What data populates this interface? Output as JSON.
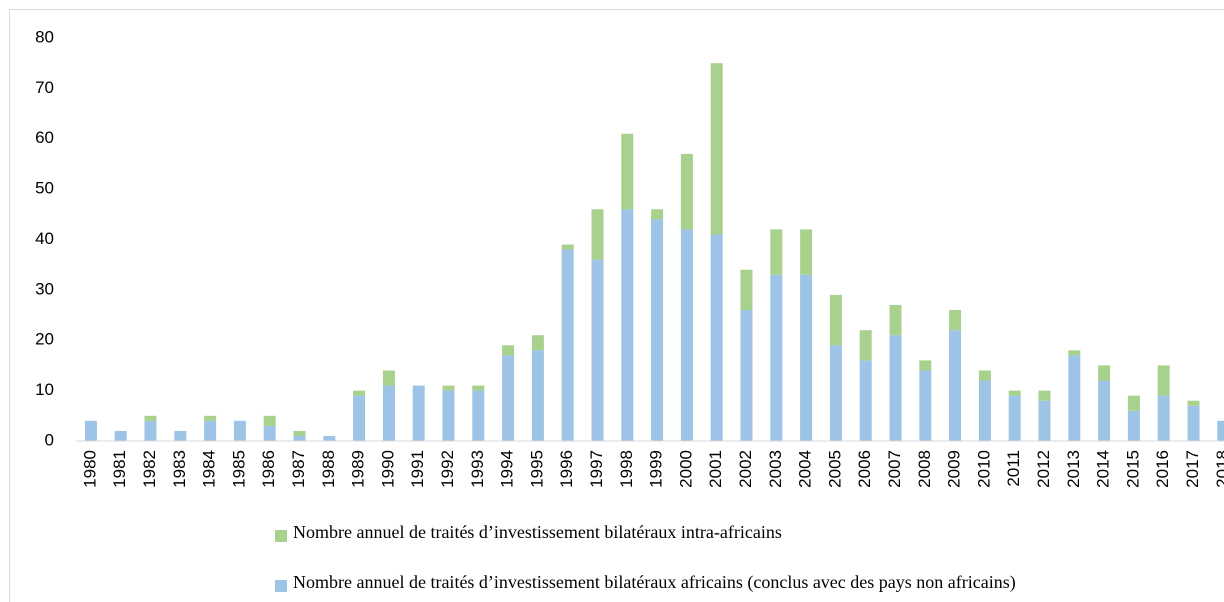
{
  "chart_data": {
    "type": "stacked_bar",
    "categories": [
      "1980",
      "1981",
      "1982",
      "1983",
      "1984",
      "1985",
      "1986",
      "1987",
      "1988",
      "1989",
      "1990",
      "1991",
      "1992",
      "1993",
      "1994",
      "1995",
      "1996",
      "1997",
      "1998",
      "1999",
      "2000",
      "2001",
      "2002",
      "2003",
      "2004",
      "2005",
      "2006",
      "2007",
      "2008",
      "2009",
      "2010",
      "2011",
      "2012",
      "2013",
      "2014",
      "2015",
      "2016",
      "2017",
      "2018"
    ],
    "series": [
      {
        "name": "Nombre annuel de traités d’investissement bilatéraux africains (conclus avec des pays non africains)",
        "color": "#9dc3e6",
        "values": [
          4,
          2,
          4,
          2,
          4,
          4,
          3,
          1,
          1,
          9,
          11,
          11,
          10,
          10,
          17,
          18,
          38,
          36,
          46,
          44,
          42,
          41,
          26,
          33,
          33,
          19,
          16,
          21,
          14,
          22,
          12,
          9,
          8,
          17,
          12,
          6,
          9,
          7,
          4
        ]
      },
      {
        "name": "Nombre annuel de traités d’investissement bilatéraux intra-africains",
        "color": "#a9d18e",
        "values": [
          0,
          0,
          1,
          0,
          1,
          0,
          2,
          1,
          0,
          1,
          3,
          0,
          1,
          1,
          2,
          3,
          1,
          10,
          15,
          2,
          15,
          34,
          8,
          9,
          9,
          10,
          6,
          6,
          2,
          4,
          2,
          1,
          2,
          1,
          3,
          3,
          6,
          1,
          0
        ]
      }
    ],
    "ylim": [
      0,
      80
    ],
    "yticks": [
      0,
      10,
      20,
      30,
      40,
      50,
      60,
      70,
      80
    ],
    "grid": false
  }
}
